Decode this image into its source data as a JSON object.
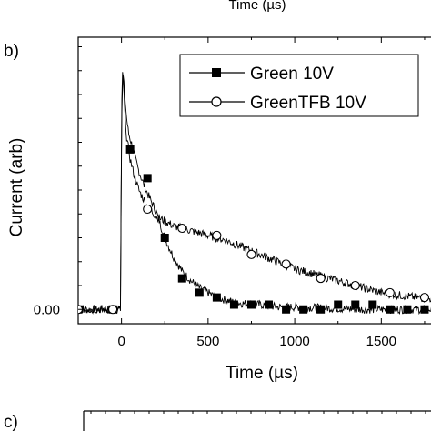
{
  "top_fragment": {
    "xlabel": "Time (µs)"
  },
  "panel_b_label": "b)",
  "panel_c_label": "c)",
  "chart_data": {
    "type": "line",
    "xlabel": "Time (µs)",
    "ylabel": "Current (arb)",
    "xlim": [
      -250,
      1850
    ],
    "ylim": [
      -0.06,
      1.14
    ],
    "x_ticks": [
      0,
      500,
      1000,
      1500
    ],
    "x_tick_labels": [
      "0",
      "500",
      "1000",
      "1500"
    ],
    "y_ticks": [
      0.0
    ],
    "y_tick_labels": [
      "0.00"
    ],
    "legend_position": "top-right",
    "series": [
      {
        "name": "Green 10V",
        "marker": "filled-square",
        "color": "#000000",
        "x": [
          -250,
          -30,
          -5,
          0,
          5,
          10,
          15,
          20,
          30,
          40,
          60,
          80,
          100,
          130,
          160,
          200,
          250,
          300,
          350,
          400,
          450,
          500,
          550,
          600,
          650,
          700,
          800,
          900,
          1000,
          1200,
          1400,
          1600,
          1850
        ],
        "y": [
          0.0,
          0.0,
          0.0,
          0.75,
          0.93,
          0.98,
          0.95,
          0.88,
          0.8,
          0.74,
          0.69,
          0.63,
          0.58,
          0.52,
          0.47,
          0.41,
          0.3,
          0.22,
          0.16,
          0.12,
          0.09,
          0.07,
          0.05,
          0.04,
          0.03,
          0.025,
          0.02,
          0.01,
          0.01,
          0.005,
          0.0,
          0.0,
          0.0
        ],
        "marker_x": [
          -250,
          -50,
          50,
          150,
          250,
          350,
          450,
          550,
          650,
          750,
          850,
          950,
          1050,
          1150,
          1250,
          1350,
          1450,
          1550,
          1650,
          1750,
          1850
        ],
        "marker_y": [
          0.0,
          0.0,
          0.67,
          0.55,
          0.3,
          0.13,
          0.07,
          0.05,
          0.02,
          0.02,
          0.02,
          0.0,
          0.0,
          0.0,
          0.02,
          0.02,
          0.02,
          0.0,
          0.0,
          0.0,
          0.0
        ]
      },
      {
        "name": "GreenTFB 10V",
        "marker": "open-circle",
        "color": "#000000",
        "x": [
          -250,
          -30,
          -5,
          0,
          5,
          10,
          15,
          20,
          30,
          50,
          70,
          100,
          150,
          200,
          250,
          300,
          400,
          500,
          600,
          700,
          800,
          900,
          1000,
          1100,
          1200,
          1300,
          1400,
          1500,
          1600,
          1700,
          1850
        ],
        "y": [
          0.0,
          0.0,
          0.0,
          0.8,
          1.0,
          0.97,
          0.9,
          0.82,
          0.72,
          0.63,
          0.57,
          0.5,
          0.43,
          0.39,
          0.37,
          0.35,
          0.33,
          0.31,
          0.29,
          0.26,
          0.23,
          0.2,
          0.17,
          0.15,
          0.13,
          0.11,
          0.09,
          0.07,
          0.06,
          0.05,
          0.04
        ],
        "marker_x": [
          -250,
          -50,
          150,
          350,
          550,
          750,
          950,
          1150,
          1350,
          1550,
          1750
        ],
        "marker_y": [
          0.0,
          0.0,
          0.42,
          0.34,
          0.31,
          0.23,
          0.19,
          0.13,
          0.1,
          0.07,
          0.05
        ]
      }
    ]
  }
}
